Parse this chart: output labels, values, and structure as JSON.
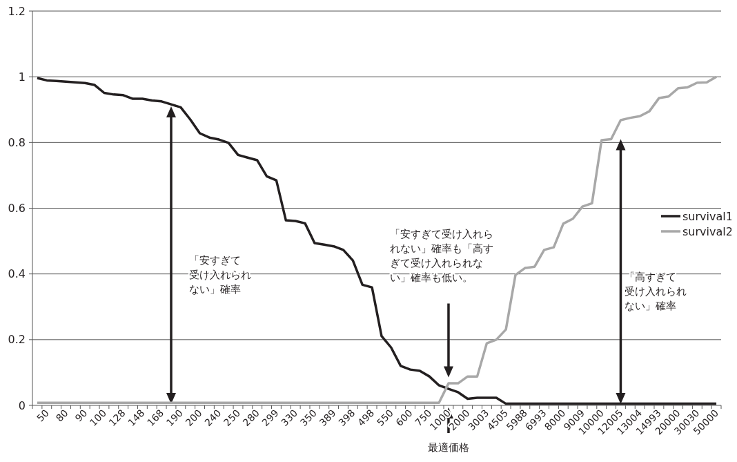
{
  "chart_data": {
    "type": "line",
    "categories": [
      null,
      "50",
      null,
      "80",
      null,
      "90",
      null,
      "100",
      null,
      "128",
      null,
      "148",
      null,
      "168",
      null,
      "190",
      null,
      "200",
      null,
      "240",
      null,
      "250",
      null,
      "280",
      null,
      "299",
      null,
      "330",
      null,
      "350",
      null,
      "389",
      null,
      "398",
      null,
      "498",
      null,
      "550",
      null,
      "600",
      null,
      "750",
      null,
      "1000",
      null,
      "2000",
      null,
      "3003",
      null,
      "4505",
      null,
      "5988",
      null,
      "6993",
      null,
      "8000",
      null,
      "9009",
      null,
      "10000",
      null,
      "12005",
      null,
      "13004",
      null,
      "14993",
      null,
      "20000",
      null,
      "30030",
      null,
      "50000"
    ],
    "series": [
      {
        "name": "survival1",
        "color": "#231f20",
        "values": [
          0.996,
          0.989,
          0.987,
          0.985,
          0.983,
          0.981,
          0.975,
          0.951,
          0.946,
          0.944,
          0.933,
          0.933,
          0.928,
          0.925,
          0.916,
          0.907,
          0.87,
          0.828,
          0.815,
          0.809,
          0.799,
          0.762,
          0.754,
          0.746,
          0.697,
          0.685,
          0.563,
          0.561,
          0.554,
          0.494,
          0.489,
          0.484,
          0.473,
          0.441,
          0.367,
          0.359,
          0.211,
          0.176,
          0.12,
          0.109,
          0.105,
          0.088,
          0.061,
          0.05,
          0.04,
          0.02,
          0.023,
          0.023,
          0.023,
          0.005,
          0.005,
          0.005,
          0.005,
          0.005,
          0.005,
          0.005,
          0.005,
          0.005,
          0.005,
          0.005,
          0.005,
          0.005,
          0.005,
          0.005,
          0.005,
          0.005,
          0.005,
          0.005,
          0.005,
          0.005,
          0.005,
          0.005
        ]
      },
      {
        "name": "survival2",
        "color": "#a8a8a8",
        "values": [
          0.008,
          0.008,
          0.008,
          0.008,
          0.008,
          0.008,
          0.008,
          0.008,
          0.008,
          0.008,
          0.008,
          0.008,
          0.008,
          0.008,
          0.008,
          0.008,
          0.008,
          0.008,
          0.008,
          0.008,
          0.008,
          0.008,
          0.008,
          0.008,
          0.008,
          0.008,
          0.008,
          0.008,
          0.008,
          0.008,
          0.008,
          0.008,
          0.008,
          0.008,
          0.008,
          0.008,
          0.008,
          0.008,
          0.008,
          0.008,
          0.008,
          0.008,
          0.008,
          0.067,
          0.067,
          0.088,
          0.088,
          0.189,
          0.2,
          0.231,
          0.397,
          0.418,
          0.422,
          0.473,
          0.481,
          0.553,
          0.568,
          0.605,
          0.615,
          0.807,
          0.81,
          0.868,
          0.875,
          0.88,
          0.895,
          0.935,
          0.94,
          0.965,
          0.968,
          0.982,
          0.983,
          1.0
        ]
      }
    ],
    "ylim": [
      0,
      1.2
    ],
    "yticks": [
      0,
      0.2,
      0.4,
      0.6,
      0.8,
      1,
      1.2
    ],
    "grid": "y",
    "legend": "right",
    "line_style": "solid",
    "marker": "none",
    "annotations": [
      "「安すぎて受け入れられない」確率",
      "「安すぎて受け入れられない」確率も「高すぎて受け入れられない」確率も低い。",
      "「高すぎて受け入れられない」確率",
      "最適価格"
    ]
  }
}
